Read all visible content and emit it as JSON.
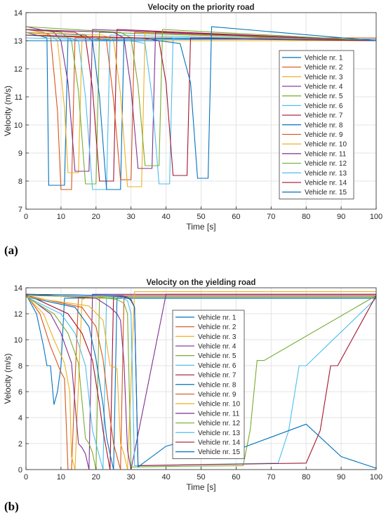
{
  "colors": [
    "#0072BD",
    "#D95319",
    "#EDB120",
    "#7E2F8E",
    "#77AC30",
    "#4DBEEE",
    "#A2142F",
    "#0072BD",
    "#D95319",
    "#EDB120",
    "#7E2F8E",
    "#77AC30",
    "#4DBEEE",
    "#A2142F",
    "#0072BD"
  ],
  "panel_labels": {
    "a": "(a)",
    "b": "(b)"
  },
  "chart_data": [
    {
      "type": "line",
      "title": "Velocity on the priority road",
      "xlabel": "Time [s]",
      "ylabel": "Velocity (m/s)",
      "xlim": [
        0,
        100
      ],
      "ylim": [
        7,
        14
      ],
      "xticks": [
        0,
        10,
        20,
        30,
        40,
        50,
        60,
        70,
        80,
        90,
        100
      ],
      "yticks": [
        7,
        8,
        9,
        10,
        11,
        12,
        13,
        14
      ],
      "grid": true,
      "legend": "right",
      "series": [
        {
          "name": "Vehicle nr. 1",
          "x": [
            0,
            3,
            6,
            6.5,
            11,
            12,
            14,
            100
          ],
          "y": [
            13.3,
            13.2,
            13.1,
            7.85,
            7.85,
            13.1,
            13.05,
            13.05
          ]
        },
        {
          "name": "Vehicle nr. 2",
          "x": [
            0,
            5,
            7,
            9,
            10,
            13,
            14,
            100
          ],
          "y": [
            13.4,
            13.3,
            13.2,
            10.5,
            7.7,
            7.7,
            13.1,
            13.1
          ]
        },
        {
          "name": "Vehicle nr. 3",
          "x": [
            0,
            7,
            9,
            11,
            12,
            15,
            16,
            100
          ],
          "y": [
            13.3,
            13.2,
            13.0,
            10.6,
            8.3,
            8.3,
            13.0,
            13.0
          ]
        },
        {
          "name": "Vehicle nr. 4",
          "x": [
            0,
            8,
            10,
            12,
            14,
            18,
            19,
            100
          ],
          "y": [
            13.5,
            13.3,
            13.0,
            11.5,
            8.35,
            8.35,
            13.4,
            13.0
          ]
        },
        {
          "name": "Vehicle nr. 5",
          "x": [
            0,
            10,
            13,
            15,
            17,
            20,
            21,
            100
          ],
          "y": [
            13.4,
            13.3,
            13.0,
            11.2,
            7.9,
            7.9,
            13.3,
            13.0
          ]
        },
        {
          "name": "Vehicle nr. 6",
          "x": [
            0,
            12,
            15,
            17,
            19,
            23,
            24,
            100
          ],
          "y": [
            13.2,
            13.1,
            13.0,
            11.0,
            7.7,
            7.7,
            13.2,
            13.0
          ]
        },
        {
          "name": "Vehicle nr. 7",
          "x": [
            0,
            14,
            17,
            19,
            21,
            25,
            26,
            100
          ],
          "y": [
            13.4,
            13.3,
            13.1,
            11.3,
            8.0,
            8.0,
            13.4,
            13.0
          ]
        },
        {
          "name": "Vehicle nr. 8",
          "x": [
            0,
            17,
            19,
            21,
            23,
            27,
            28,
            100
          ],
          "y": [
            13.3,
            13.2,
            13.0,
            11.0,
            7.7,
            7.7,
            13.1,
            13.0
          ]
        },
        {
          "name": "Vehicle nr. 9",
          "x": [
            0,
            20,
            23,
            25,
            27,
            30,
            31,
            100
          ],
          "y": [
            13.2,
            13.1,
            13.0,
            10.9,
            8.05,
            8.05,
            13.3,
            13.0
          ]
        },
        {
          "name": "Vehicle nr. 10",
          "x": [
            0,
            22,
            25,
            27,
            29,
            33,
            34,
            100
          ],
          "y": [
            13.3,
            13.2,
            13.0,
            11.1,
            7.8,
            7.8,
            13.3,
            13.0
          ]
        },
        {
          "name": "Vehicle nr. 11",
          "x": [
            0,
            25,
            28,
            30,
            32,
            36,
            37,
            100
          ],
          "y": [
            13.4,
            13.3,
            13.1,
            11.3,
            8.45,
            8.45,
            13.3,
            13.0
          ]
        },
        {
          "name": "Vehicle nr. 12",
          "x": [
            0,
            27,
            30,
            32,
            34,
            38,
            39,
            100
          ],
          "y": [
            13.5,
            13.3,
            13.1,
            11.4,
            8.55,
            8.55,
            13.4,
            13.0
          ]
        },
        {
          "name": "Vehicle nr. 13",
          "x": [
            0,
            30,
            34,
            36,
            38,
            41,
            42,
            100
          ],
          "y": [
            13.1,
            13.0,
            12.9,
            11.0,
            7.9,
            7.9,
            13.1,
            13.0
          ]
        },
        {
          "name": "Vehicle nr. 14",
          "x": [
            0,
            33,
            38,
            40,
            42,
            46,
            47,
            100
          ],
          "y": [
            13.2,
            13.1,
            13.0,
            11.5,
            8.2,
            8.2,
            13.1,
            13.0
          ]
        },
        {
          "name": "Vehicle nr. 15",
          "x": [
            0,
            38,
            44,
            47,
            49,
            52,
            53,
            100
          ],
          "y": [
            13.0,
            13.0,
            12.9,
            11.5,
            8.1,
            8.1,
            13.5,
            13.0
          ]
        }
      ]
    },
    {
      "type": "line",
      "title": "Velocity on the yielding road",
      "xlabel": "Time [s]",
      "ylabel": "Velocity (m/s)",
      "xlim": [
        0,
        100
      ],
      "ylim": [
        0,
        14
      ],
      "xticks": [
        0,
        10,
        20,
        30,
        40,
        50,
        60,
        70,
        80,
        90,
        100
      ],
      "yticks": [
        0,
        2,
        4,
        6,
        8,
        10,
        12,
        14
      ],
      "grid": true,
      "legend": "center",
      "series": [
        {
          "name": "Vehicle nr. 1",
          "x": [
            0,
            3,
            5,
            6,
            7,
            8,
            9,
            10,
            11,
            100
          ],
          "y": [
            13.5,
            12.0,
            9.5,
            8.0,
            8.0,
            5.0,
            6.0,
            8.0,
            13.2,
            13.2
          ]
        },
        {
          "name": "Vehicle nr. 2",
          "x": [
            0,
            4,
            7,
            10,
            11,
            12,
            13,
            15,
            16,
            100
          ],
          "y": [
            13.5,
            12.0,
            9.5,
            7.5,
            7.0,
            0,
            0,
            13.3,
            13.3,
            13.3
          ]
        },
        {
          "name": "Vehicle nr. 3",
          "x": [
            0,
            5,
            8,
            11,
            12.5,
            13,
            14,
            16,
            17,
            100
          ],
          "y": [
            13.4,
            12.0,
            10.0,
            8.2,
            6.0,
            1.0,
            0,
            13.1,
            13.2,
            13.2
          ]
        },
        {
          "name": "Vehicle nr. 4",
          "x": [
            0,
            7,
            10,
            13,
            15,
            16,
            17,
            18,
            19,
            100
          ],
          "y": [
            13.4,
            12.0,
            10.5,
            8.2,
            2.0,
            1.7,
            1.2,
            0,
            13.5,
            13.5
          ]
        },
        {
          "name": "Vehicle nr. 5",
          "x": [
            0,
            8,
            12,
            15,
            17,
            18,
            19,
            20,
            21,
            100
          ],
          "y": [
            13.3,
            12.0,
            10.5,
            8.2,
            2.4,
            2.0,
            1.3,
            0,
            13.3,
            13.3
          ]
        },
        {
          "name": "Vehicle nr. 6",
          "x": [
            0,
            10,
            14,
            17,
            19,
            20,
            21,
            22,
            23,
            100
          ],
          "y": [
            13.3,
            12.0,
            10.5,
            8.0,
            3.0,
            2.0,
            1.0,
            0,
            13.2,
            13.2
          ]
        },
        {
          "name": "Vehicle nr. 7",
          "x": [
            0,
            12,
            16,
            19,
            21,
            22,
            23,
            24,
            25,
            100
          ],
          "y": [
            13.5,
            12.0,
            10.5,
            8.4,
            5.0,
            3.0,
            1.5,
            0,
            13.4,
            13.4
          ]
        },
        {
          "name": "Vehicle nr. 8",
          "x": [
            0,
            14,
            18,
            20,
            22,
            23,
            24,
            25,
            26,
            100
          ],
          "y": [
            13.3,
            12.5,
            11.0,
            8.5,
            5.0,
            2.5,
            1.2,
            0,
            13.2,
            13.2
          ]
        },
        {
          "name": "Vehicle nr. 9",
          "x": [
            0,
            16,
            20,
            22,
            24,
            25,
            26,
            27,
            28,
            100
          ],
          "y": [
            13.4,
            12.5,
            11.0,
            8.5,
            4.0,
            2.0,
            1.0,
            0,
            13.4,
            13.4
          ]
        },
        {
          "name": "Vehicle nr. 10",
          "x": [
            0,
            18,
            22,
            24,
            26,
            27,
            28,
            29,
            31,
            100
          ],
          "y": [
            13.3,
            12.6,
            11.5,
            8.0,
            7.8,
            2.0,
            1.2,
            0,
            13.7,
            13.7
          ]
        },
        {
          "name": "Vehicle nr. 11",
          "x": [
            0,
            20,
            24,
            26,
            27,
            28,
            29,
            30,
            40,
            100
          ],
          "y": [
            13.5,
            13.2,
            12.5,
            12.0,
            11.5,
            8.2,
            1.5,
            0,
            13.5,
            13.5
          ]
        },
        {
          "name": "Vehicle nr. 12",
          "x": [
            0,
            20,
            26,
            28,
            29,
            30,
            62,
            64,
            66,
            68,
            100
          ],
          "y": [
            13.4,
            13.3,
            13.1,
            12.8,
            12.0,
            0.2,
            0.3,
            3.0,
            8.4,
            8.4,
            13.4
          ]
        },
        {
          "name": "Vehicle nr. 13",
          "x": [
            0,
            22,
            27,
            29,
            30,
            31,
            72,
            75,
            78,
            80,
            100
          ],
          "y": [
            13.5,
            13.4,
            13.3,
            13.0,
            12.0,
            0.3,
            0.5,
            3.0,
            8.0,
            8.0,
            13.2
          ]
        },
        {
          "name": "Vehicle nr. 14",
          "x": [
            0,
            24,
            28,
            30,
            31,
            32,
            80,
            84,
            87,
            89,
            100
          ],
          "y": [
            13.5,
            13.4,
            13.3,
            13.1,
            12.5,
            0.3,
            0.5,
            3.0,
            8.0,
            8.0,
            13.4
          ]
        },
        {
          "name": "Vehicle nr. 15",
          "x": [
            0,
            25,
            29,
            30,
            31,
            32,
            40,
            50,
            60,
            70,
            80,
            90,
            100
          ],
          "y": [
            13.5,
            13.4,
            13.3,
            13.0,
            12.5,
            0.2,
            1.8,
            2.5,
            1.5,
            2.5,
            3.5,
            1.0,
            0.1
          ]
        }
      ]
    }
  ]
}
